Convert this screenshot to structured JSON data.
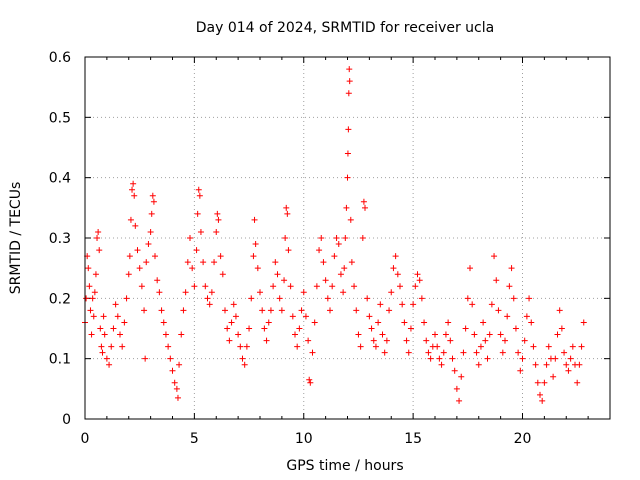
{
  "chart_data": {
    "type": "scatter",
    "title": "Day 014 of 2024, SRMTID for receiver ucla",
    "xlabel": "GPS time / hours",
    "ylabel": "SRMTID / TECUs",
    "xlim": [
      0,
      24
    ],
    "ylim": [
      0,
      0.6
    ],
    "xticks": [
      0,
      5,
      10,
      15,
      20
    ],
    "yticks": [
      0,
      0.1,
      0.2,
      0.3,
      0.4,
      0.5,
      0.6
    ],
    "xtick_labels": [
      "0",
      "5",
      "10",
      "15",
      "20"
    ],
    "ytick_labels": [
      "0",
      "0.1",
      "0.2",
      "0.3",
      "0.4",
      "0.5",
      "0.6"
    ],
    "grid": true,
    "marker": "+",
    "color": "#ff0000",
    "series": [
      {
        "name": "SRMTID",
        "points": [
          [
            0.0,
            0.16
          ],
          [
            0.05,
            0.2
          ],
          [
            0.1,
            0.27
          ],
          [
            0.15,
            0.25
          ],
          [
            0.2,
            0.22
          ],
          [
            0.25,
            0.18
          ],
          [
            0.3,
            0.14
          ],
          [
            0.35,
            0.2
          ],
          [
            0.4,
            0.17
          ],
          [
            0.45,
            0.21
          ],
          [
            0.5,
            0.24
          ],
          [
            0.55,
            0.3
          ],
          [
            0.6,
            0.31
          ],
          [
            0.65,
            0.28
          ],
          [
            0.7,
            0.15
          ],
          [
            0.75,
            0.12
          ],
          [
            0.8,
            0.11
          ],
          [
            0.85,
            0.17
          ],
          [
            0.9,
            0.14
          ],
          [
            1.0,
            0.1
          ],
          [
            1.1,
            0.09
          ],
          [
            1.2,
            0.12
          ],
          [
            1.3,
            0.15
          ],
          [
            1.4,
            0.19
          ],
          [
            1.5,
            0.17
          ],
          [
            1.6,
            0.14
          ],
          [
            1.7,
            0.12
          ],
          [
            1.8,
            0.16
          ],
          [
            1.9,
            0.2
          ],
          [
            2.0,
            0.24
          ],
          [
            2.05,
            0.27
          ],
          [
            2.1,
            0.33
          ],
          [
            2.15,
            0.38
          ],
          [
            2.2,
            0.39
          ],
          [
            2.25,
            0.37
          ],
          [
            2.3,
            0.32
          ],
          [
            2.4,
            0.28
          ],
          [
            2.5,
            0.25
          ],
          [
            2.6,
            0.22
          ],
          [
            2.7,
            0.18
          ],
          [
            2.75,
            0.1
          ],
          [
            2.8,
            0.26
          ],
          [
            2.9,
            0.29
          ],
          [
            3.0,
            0.31
          ],
          [
            3.05,
            0.34
          ],
          [
            3.1,
            0.37
          ],
          [
            3.15,
            0.36
          ],
          [
            3.2,
            0.27
          ],
          [
            3.3,
            0.23
          ],
          [
            3.4,
            0.21
          ],
          [
            3.5,
            0.18
          ],
          [
            3.6,
            0.16
          ],
          [
            3.7,
            0.14
          ],
          [
            3.8,
            0.12
          ],
          [
            3.9,
            0.1
          ],
          [
            4.0,
            0.08
          ],
          [
            4.1,
            0.06
          ],
          [
            4.2,
            0.05
          ],
          [
            4.25,
            0.035
          ],
          [
            4.3,
            0.09
          ],
          [
            4.4,
            0.14
          ],
          [
            4.5,
            0.18
          ],
          [
            4.6,
            0.21
          ],
          [
            4.7,
            0.26
          ],
          [
            4.8,
            0.3
          ],
          [
            4.9,
            0.25
          ],
          [
            5.0,
            0.22
          ],
          [
            5.1,
            0.28
          ],
          [
            5.15,
            0.34
          ],
          [
            5.2,
            0.38
          ],
          [
            5.25,
            0.37
          ],
          [
            5.3,
            0.31
          ],
          [
            5.4,
            0.26
          ],
          [
            5.5,
            0.22
          ],
          [
            5.6,
            0.2
          ],
          [
            5.7,
            0.19
          ],
          [
            5.8,
            0.21
          ],
          [
            5.9,
            0.26
          ],
          [
            6.0,
            0.31
          ],
          [
            6.05,
            0.34
          ],
          [
            6.1,
            0.33
          ],
          [
            6.2,
            0.27
          ],
          [
            6.3,
            0.24
          ],
          [
            6.4,
            0.18
          ],
          [
            6.5,
            0.15
          ],
          [
            6.6,
            0.13
          ],
          [
            6.7,
            0.16
          ],
          [
            6.8,
            0.19
          ],
          [
            6.9,
            0.17
          ],
          [
            7.0,
            0.14
          ],
          [
            7.1,
            0.12
          ],
          [
            7.2,
            0.1
          ],
          [
            7.3,
            0.09
          ],
          [
            7.4,
            0.12
          ],
          [
            7.5,
            0.15
          ],
          [
            7.6,
            0.2
          ],
          [
            7.7,
            0.27
          ],
          [
            7.75,
            0.33
          ],
          [
            7.8,
            0.29
          ],
          [
            7.9,
            0.25
          ],
          [
            8.0,
            0.21
          ],
          [
            8.1,
            0.18
          ],
          [
            8.2,
            0.15
          ],
          [
            8.3,
            0.13
          ],
          [
            8.4,
            0.16
          ],
          [
            8.5,
            0.18
          ],
          [
            8.6,
            0.22
          ],
          [
            8.7,
            0.26
          ],
          [
            8.8,
            0.24
          ],
          [
            8.9,
            0.2
          ],
          [
            9.0,
            0.18
          ],
          [
            9.1,
            0.23
          ],
          [
            9.15,
            0.3
          ],
          [
            9.2,
            0.35
          ],
          [
            9.25,
            0.34
          ],
          [
            9.3,
            0.28
          ],
          [
            9.4,
            0.22
          ],
          [
            9.5,
            0.17
          ],
          [
            9.6,
            0.14
          ],
          [
            9.7,
            0.12
          ],
          [
            9.8,
            0.15
          ],
          [
            9.9,
            0.18
          ],
          [
            10.0,
            0.21
          ],
          [
            10.1,
            0.17
          ],
          [
            10.2,
            0.13
          ],
          [
            10.25,
            0.065
          ],
          [
            10.3,
            0.06
          ],
          [
            10.4,
            0.11
          ],
          [
            10.5,
            0.16
          ],
          [
            10.6,
            0.22
          ],
          [
            10.7,
            0.28
          ],
          [
            10.8,
            0.3
          ],
          [
            10.9,
            0.26
          ],
          [
            11.0,
            0.23
          ],
          [
            11.1,
            0.2
          ],
          [
            11.2,
            0.18
          ],
          [
            11.3,
            0.22
          ],
          [
            11.4,
            0.27
          ],
          [
            11.5,
            0.3
          ],
          [
            11.6,
            0.29
          ],
          [
            11.7,
            0.24
          ],
          [
            11.8,
            0.21
          ],
          [
            11.85,
            0.25
          ],
          [
            11.9,
            0.3
          ],
          [
            11.95,
            0.35
          ],
          [
            12.0,
            0.4
          ],
          [
            12.02,
            0.44
          ],
          [
            12.04,
            0.48
          ],
          [
            12.06,
            0.54
          ],
          [
            12.08,
            0.58
          ],
          [
            12.1,
            0.56
          ],
          [
            12.15,
            0.33
          ],
          [
            12.2,
            0.26
          ],
          [
            12.3,
            0.22
          ],
          [
            12.4,
            0.18
          ],
          [
            12.5,
            0.14
          ],
          [
            12.6,
            0.12
          ],
          [
            12.7,
            0.3
          ],
          [
            12.75,
            0.36
          ],
          [
            12.8,
            0.35
          ],
          [
            12.9,
            0.2
          ],
          [
            13.0,
            0.17
          ],
          [
            13.1,
            0.15
          ],
          [
            13.2,
            0.13
          ],
          [
            13.3,
            0.12
          ],
          [
            13.4,
            0.16
          ],
          [
            13.5,
            0.19
          ],
          [
            13.6,
            0.14
          ],
          [
            13.7,
            0.11
          ],
          [
            13.8,
            0.13
          ],
          [
            13.9,
            0.18
          ],
          [
            14.0,
            0.21
          ],
          [
            14.1,
            0.25
          ],
          [
            14.2,
            0.27
          ],
          [
            14.3,
            0.24
          ],
          [
            14.4,
            0.22
          ],
          [
            14.5,
            0.19
          ],
          [
            14.6,
            0.16
          ],
          [
            14.7,
            0.13
          ],
          [
            14.8,
            0.11
          ],
          [
            14.9,
            0.15
          ],
          [
            15.0,
            0.19
          ],
          [
            15.1,
            0.22
          ],
          [
            15.2,
            0.24
          ],
          [
            15.3,
            0.23
          ],
          [
            15.4,
            0.2
          ],
          [
            15.5,
            0.16
          ],
          [
            15.6,
            0.13
          ],
          [
            15.7,
            0.11
          ],
          [
            15.8,
            0.1
          ],
          [
            15.9,
            0.12
          ],
          [
            16.0,
            0.14
          ],
          [
            16.1,
            0.12
          ],
          [
            16.2,
            0.1
          ],
          [
            16.3,
            0.09
          ],
          [
            16.4,
            0.11
          ],
          [
            16.5,
            0.14
          ],
          [
            16.6,
            0.16
          ],
          [
            16.7,
            0.13
          ],
          [
            16.8,
            0.1
          ],
          [
            16.9,
            0.08
          ],
          [
            17.0,
            0.05
          ],
          [
            17.1,
            0.03
          ],
          [
            17.2,
            0.07
          ],
          [
            17.3,
            0.11
          ],
          [
            17.4,
            0.15
          ],
          [
            17.5,
            0.2
          ],
          [
            17.6,
            0.25
          ],
          [
            17.7,
            0.19
          ],
          [
            17.8,
            0.14
          ],
          [
            17.9,
            0.11
          ],
          [
            18.0,
            0.09
          ],
          [
            18.1,
            0.12
          ],
          [
            18.2,
            0.16
          ],
          [
            18.3,
            0.13
          ],
          [
            18.4,
            0.1
          ],
          [
            18.5,
            0.14
          ],
          [
            18.6,
            0.19
          ],
          [
            18.7,
            0.27
          ],
          [
            18.8,
            0.23
          ],
          [
            18.9,
            0.18
          ],
          [
            19.0,
            0.14
          ],
          [
            19.1,
            0.11
          ],
          [
            19.2,
            0.13
          ],
          [
            19.3,
            0.17
          ],
          [
            19.4,
            0.22
          ],
          [
            19.5,
            0.25
          ],
          [
            19.6,
            0.2
          ],
          [
            19.7,
            0.15
          ],
          [
            19.8,
            0.11
          ],
          [
            19.9,
            0.08
          ],
          [
            20.0,
            0.1
          ],
          [
            20.1,
            0.13
          ],
          [
            20.2,
            0.17
          ],
          [
            20.3,
            0.2
          ],
          [
            20.4,
            0.16
          ],
          [
            20.5,
            0.12
          ],
          [
            20.6,
            0.09
          ],
          [
            20.7,
            0.06
          ],
          [
            20.8,
            0.04
          ],
          [
            20.9,
            0.03
          ],
          [
            21.0,
            0.06
          ],
          [
            21.1,
            0.09
          ],
          [
            21.2,
            0.12
          ],
          [
            21.3,
            0.1
          ],
          [
            21.4,
            0.07
          ],
          [
            21.5,
            0.1
          ],
          [
            21.6,
            0.14
          ],
          [
            21.7,
            0.18
          ],
          [
            21.8,
            0.15
          ],
          [
            21.9,
            0.11
          ],
          [
            22.0,
            0.09
          ],
          [
            22.1,
            0.08
          ],
          [
            22.2,
            0.1
          ],
          [
            22.3,
            0.12
          ],
          [
            22.4,
            0.09
          ],
          [
            22.5,
            0.06
          ],
          [
            22.6,
            0.09
          ],
          [
            22.7,
            0.12
          ],
          [
            22.8,
            0.16
          ]
        ]
      }
    ]
  }
}
